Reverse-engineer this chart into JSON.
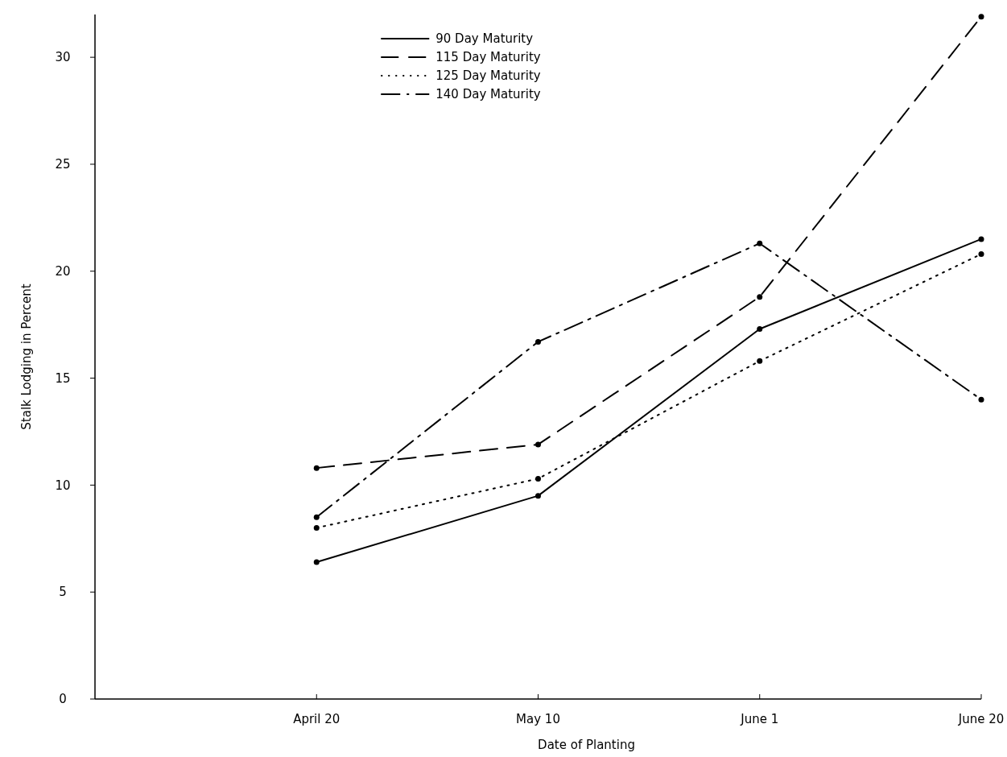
{
  "chart_data": {
    "type": "line",
    "xlabel": "Date of Planting",
    "ylabel": "Stalk Lodging in Percent",
    "categories": [
      "April 20",
      "May 10",
      "June 1",
      "June 20"
    ],
    "series": [
      {
        "name": "90 Day Maturity",
        "color": "#000000",
        "line_style": "solid",
        "values": [
          6.4,
          9.5,
          17.3,
          21.5
        ]
      },
      {
        "name": "115 Day Maturity",
        "color": "#000000",
        "line_style": "dashed",
        "values": [
          10.8,
          11.9,
          18.8,
          31.9
        ]
      },
      {
        "name": "125 Day Maturity",
        "color": "#000000",
        "line_style": "dotted",
        "values": [
          8.0,
          10.3,
          15.8,
          20.8
        ]
      },
      {
        "name": "140 Day Maturity",
        "color": "#000000",
        "line_style": "dashdot",
        "values": [
          8.5,
          16.7,
          21.3,
          14.0
        ]
      }
    ],
    "ylim": [
      0,
      32
    ],
    "yticks": [
      0,
      5,
      10,
      15,
      20,
      25,
      30
    ],
    "marker": "circle",
    "legend": "top left",
    "grid": false
  }
}
